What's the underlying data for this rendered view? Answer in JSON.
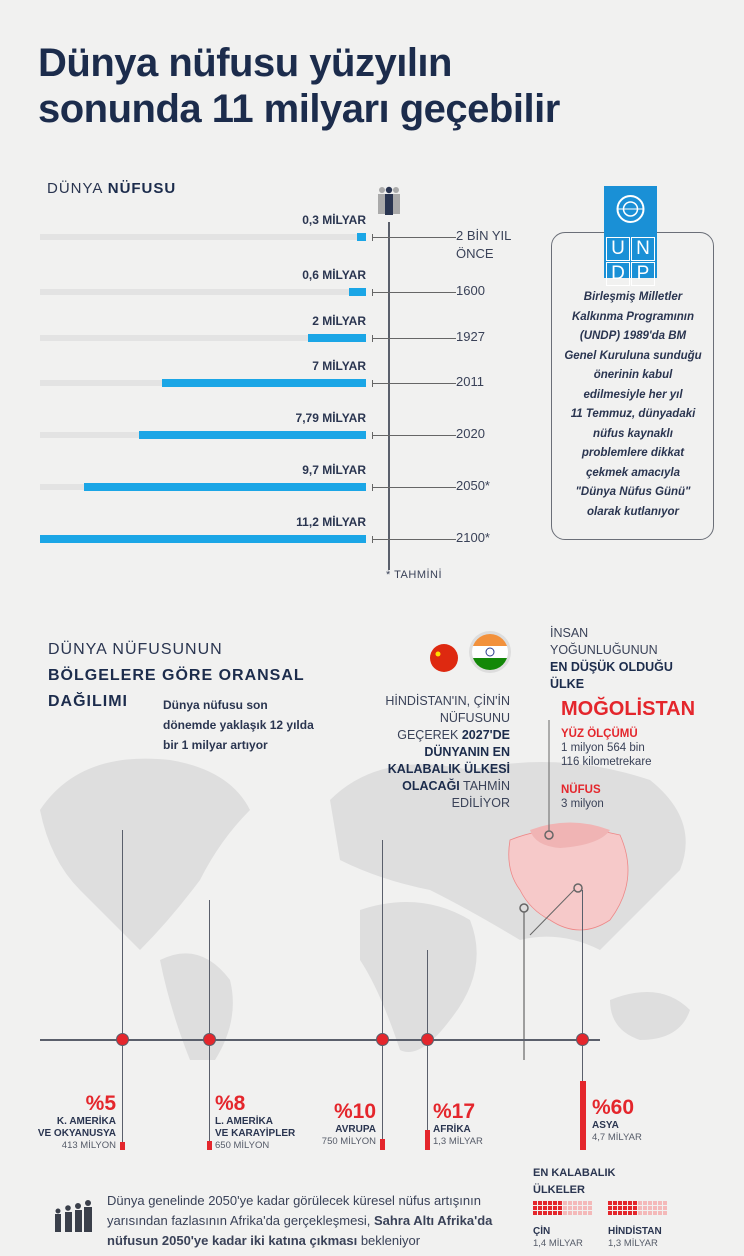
{
  "title": [
    "Dünya nüfusu yüzyılın",
    "sonunda 11 milyarı geçebilir"
  ],
  "section1": {
    "light": "DÜNYA ",
    "bold": "NÜFUSU",
    "footnote": "* TAHMİNİ"
  },
  "chart_data": {
    "type": "bar",
    "orientation": "horizontal",
    "title": "DÜNYA NÜFUSU",
    "categories": [
      "2 BİN YIL ÖNCE",
      "1600",
      "1927",
      "2011",
      "2020",
      "2050*",
      "2100*"
    ],
    "values": [
      0.3,
      0.6,
      2,
      7,
      7.79,
      9.7,
      11.2
    ],
    "unit": "milyar",
    "data_labels": [
      "0,3 MİLYAR",
      "0,6 MİLYAR",
      "2 MİLYAR",
      "7 MİLYAR",
      "7,79 MİLYAR",
      "9,7 MİLYAR",
      "11,2 MİLYAR"
    ],
    "category_lines": [
      [
        "2 BİN YIL",
        "ÖNCE"
      ],
      [
        "1600"
      ],
      [
        "1927"
      ],
      [
        "2011"
      ],
      [
        "2020"
      ],
      [
        "2050*"
      ],
      [
        "2100*"
      ]
    ],
    "xlim": [
      0,
      11.2
    ],
    "bar_color": "#1ba6e6",
    "track_color": "#e3e3e3"
  },
  "undp": {
    "logo_letters": [
      "U",
      "N",
      "D",
      "P"
    ],
    "text": [
      "Birleşmiş Milletler",
      "Kalkınma Programının",
      "(UNDP) 1989'da BM",
      "Genel Kuruluna sunduğu",
      "önerinin kabul",
      "edilmesiyle her yıl",
      "11 Temmuz, dünyadaki",
      "nüfus kaynaklı",
      "problemlere dikkat",
      "çekmek amacıyla",
      "\"Dünya Nüfus Günü\"",
      "olarak kutlanıyor"
    ],
    "color": "#1a90d6"
  },
  "section2": {
    "line1": "DÜNYA NÜFUSUNUN",
    "line2": "BÖLGELERE GÖRE ORANSAL",
    "line3": "DAĞILIMI",
    "sub": [
      "Dünya nüfusu son",
      "dönemde yaklaşık 12 yılda",
      "bir 1 milyar artıyor"
    ]
  },
  "india": {
    "lines": [
      [
        "HİNDİSTAN'IN, ÇİN'İN",
        ""
      ],
      [
        "NÜFUSUNU",
        ""
      ],
      [
        "GEÇEREK ",
        "2027'DE"
      ],
      [
        "",
        "DÜNYANIN EN"
      ],
      [
        "",
        "KALABALIK ÜLKESİ"
      ],
      [
        "",
        "OLACAĞI",
        " TAHMİN"
      ],
      [
        "EDİLİYOR",
        ""
      ]
    ]
  },
  "mongolia": {
    "intro": [
      "İNSAN",
      "YOĞUNLUĞUNUN"
    ],
    "intro_bold": [
      "EN DÜŞÜK OLDUĞU",
      "ÜLKE"
    ],
    "name": "MOĞOLİSTAN",
    "area_label": "YÜZ ÖLÇÜMÜ",
    "area": [
      "1 milyon 564 bin",
      "116 kilometrekare"
    ],
    "pop_label": "NÜFUS",
    "pop": "3 milyon"
  },
  "regions": [
    {
      "pct": "%5",
      "value": 5,
      "name": [
        "K. AMERİKA",
        "VE OKYANUSYA"
      ],
      "pop": "413 MİLYON"
    },
    {
      "pct": "%8",
      "value": 8,
      "name": [
        "L. AMERİKA",
        "VE KARAYİPLER"
      ],
      "pop": "650 MİLYON"
    },
    {
      "pct": "%10",
      "value": 10,
      "name": [
        "AVRUPA"
      ],
      "pop": "750 MİLYON"
    },
    {
      "pct": "%17",
      "value": 17,
      "name": [
        "AFRİKA"
      ],
      "pop": "1,3 MİLYAR"
    },
    {
      "pct": "%60",
      "value": 60,
      "name": [
        "ASYA"
      ],
      "pop": "4,7 MİLYAR"
    }
  ],
  "crowded": {
    "title": [
      "EN KALABALIK",
      "ÜLKELER"
    ],
    "countries": [
      {
        "name": "ÇİN",
        "pop": "1,4 MİLYAR"
      },
      {
        "name": "HİNDİSTAN",
        "pop": "1,3 MİLYAR"
      }
    ]
  },
  "bottom_note": {
    "normal1": "Dünya genelinde 2050'ye kadar görülecek küresel nüfus artışının",
    "normal2": "yarısından fazlasının Afrika'da gerçekleşmesi, ",
    "bold1": "Sahra Altı Afrika'da",
    "bold2": "nüfusun 2050'ye kadar iki katına çıkması",
    "normal3": " bekleniyor"
  },
  "colors": {
    "accent_red": "#e4262c",
    "navy": "#1c2c4c",
    "blue": "#1ba6e6"
  }
}
